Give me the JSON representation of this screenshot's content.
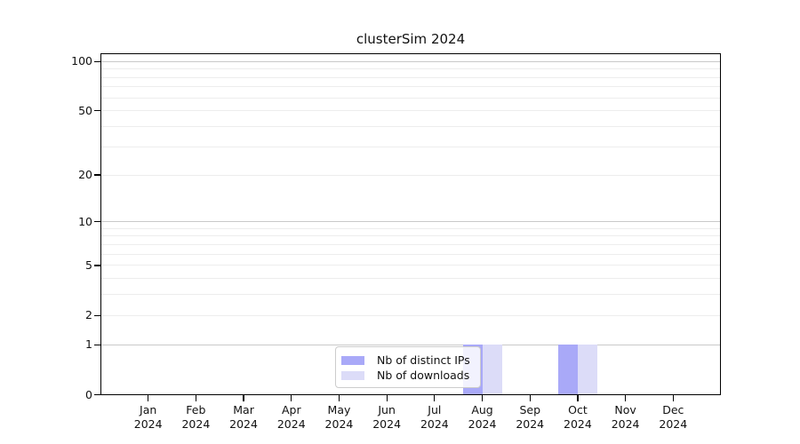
{
  "title": "clusterSim 2024",
  "colors": {
    "ips_bar": "#a9a9f8",
    "downloads_bar": "#dcdcf8",
    "grid_major": "#c9c9c9",
    "grid_minor": "#ededed",
    "axis": "#000000",
    "text": "#111111",
    "legend_border": "#cccccc"
  },
  "legend": {
    "items": [
      {
        "label": "Nb of distinct IPs",
        "color": "#a9a9f8"
      },
      {
        "label": "Nb of downloads",
        "color": "#dcdcf8"
      }
    ]
  },
  "chart_data": {
    "type": "bar",
    "title": "clusterSim 2024",
    "categories": [
      "Jan 2024",
      "Feb 2024",
      "Mar 2024",
      "Apr 2024",
      "May 2024",
      "Jun 2024",
      "Jul 2024",
      "Aug 2024",
      "Sep 2024",
      "Oct 2024",
      "Nov 2024",
      "Dec 2024"
    ],
    "series": [
      {
        "name": "Nb of distinct IPs",
        "color": "#a9a9f8",
        "values": [
          0,
          0,
          0,
          0,
          0,
          0,
          0,
          1,
          0,
          1,
          0,
          0
        ]
      },
      {
        "name": "Nb of downloads",
        "color": "#dcdcf8",
        "values": [
          0,
          0,
          0,
          0,
          0,
          0,
          0,
          1,
          0,
          1,
          0,
          0
        ]
      }
    ],
    "xlabel": "",
    "ylabel": "",
    "y_scale": "log1p",
    "ylim": [
      0,
      100
    ],
    "y_ticks": [
      0,
      1,
      2,
      5,
      10,
      20,
      50,
      100
    ],
    "y_grid_major": [
      1,
      10,
      100
    ],
    "y_grid_minor": [
      2,
      3,
      4,
      5,
      6,
      7,
      8,
      9,
      20,
      30,
      40,
      50,
      60,
      70,
      80,
      90
    ],
    "grid": "horizontal",
    "legend_position": "inside-bottom-center"
  }
}
